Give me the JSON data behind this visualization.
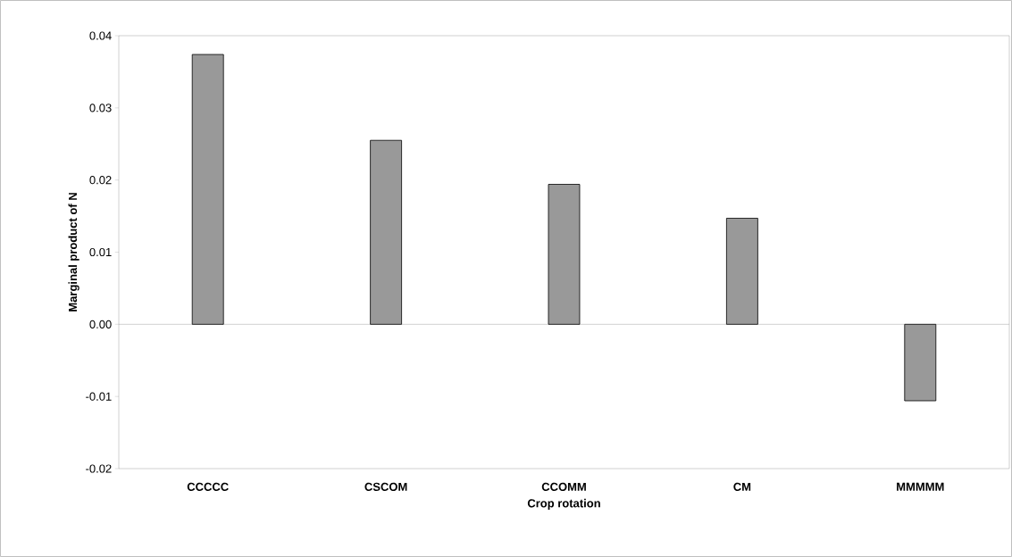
{
  "chart_data": {
    "type": "bar",
    "xlabel": "Crop rotation",
    "ylabel": "Marginal product of N",
    "categories": [
      "CCCCC",
      "CSCOM",
      "CCOMM",
      "CM",
      "MMMMM"
    ],
    "values": [
      0.0374,
      0.0255,
      0.0194,
      0.0147,
      -0.0106
    ],
    "color": "#999999",
    "ylim": [
      -0.02,
      0.04
    ],
    "yticks": [
      -0.02,
      -0.01,
      {
        "value": 0,
        "label": "0.00"
      },
      0.01,
      0.02,
      0.03,
      0.04
    ]
  }
}
